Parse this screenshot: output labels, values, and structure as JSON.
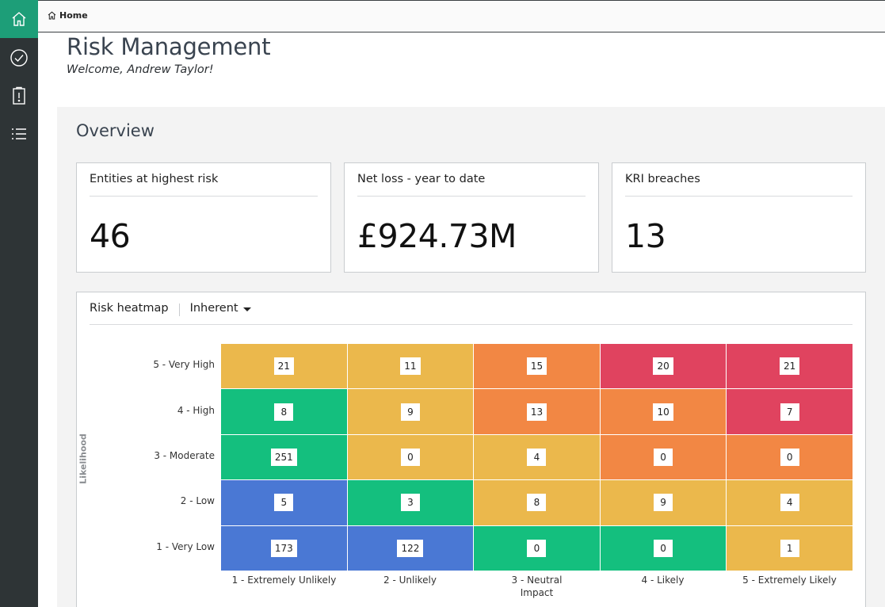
{
  "nav": {
    "items": [
      {
        "name": "home",
        "active": true
      },
      {
        "name": "tasks",
        "active": false
      },
      {
        "name": "issues",
        "active": false
      },
      {
        "name": "list",
        "active": false
      }
    ]
  },
  "breadcrumb": {
    "label": "Home"
  },
  "header": {
    "title": "Risk Management",
    "welcome": "Welcome, Andrew Taylor!"
  },
  "overview": {
    "title": "Overview",
    "cards": [
      {
        "title": "Entities at highest risk",
        "value": "46"
      },
      {
        "title": "Net loss - year to date",
        "value": "£924.73M"
      },
      {
        "title": "KRI breaches",
        "value": "13"
      }
    ]
  },
  "heatmap": {
    "title": "Risk heatmap",
    "dropdown_value": "Inherent",
    "y_axis_label": "Likelihood",
    "rows": [
      "5 - Very High",
      "4 - High",
      "3 - Moderate",
      "2 - Low",
      "1 - Very Low"
    ],
    "cols": [
      "1 - Extremely Unlikely",
      "2 - Unlikely",
      "3 - Neutral Impact",
      "4 - Likely",
      "5 - Extremely Likely"
    ],
    "values": [
      [
        21,
        11,
        15,
        20,
        21
      ],
      [
        8,
        9,
        13,
        10,
        7
      ],
      [
        251,
        0,
        4,
        0,
        0
      ],
      [
        5,
        3,
        8,
        9,
        4
      ],
      [
        173,
        122,
        0,
        0,
        1
      ]
    ],
    "levels": [
      [
        "yellow",
        "yellow",
        "orange",
        "red",
        "red"
      ],
      [
        "green",
        "yellow",
        "orange",
        "orange",
        "red"
      ],
      [
        "green",
        "yellow",
        "yellow",
        "orange",
        "orange"
      ],
      [
        "blue",
        "green",
        "yellow",
        "yellow",
        "yellow"
      ],
      [
        "blue",
        "blue",
        "green",
        "green",
        "yellow"
      ]
    ],
    "colors": {
      "blue": "#4a78d4",
      "green": "#14bf7e",
      "yellow": "#ebb84c",
      "orange": "#f28744",
      "red": "#e0435f"
    }
  }
}
